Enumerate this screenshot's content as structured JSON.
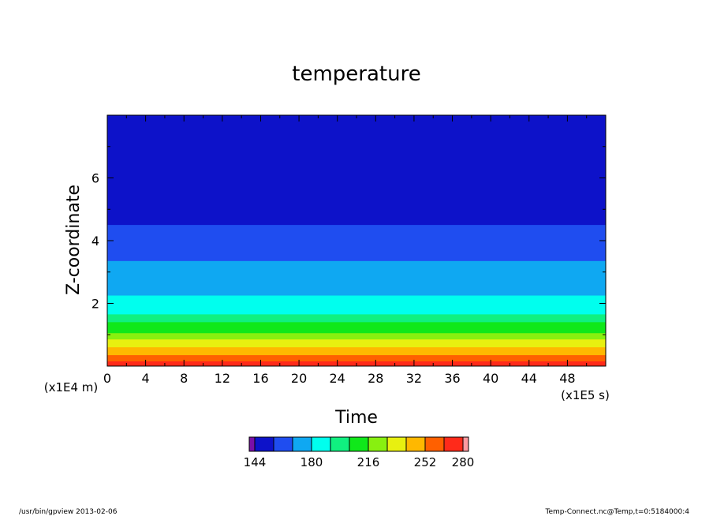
{
  "chart_data": {
    "type": "heatmap",
    "title": "temperature",
    "xlabel": "Time",
    "ylabel": "Z-coordinate",
    "x_unit_label": "(x1E5 s)",
    "y_unit_label": "(x1E4 m)",
    "xlim": [
      0,
      52
    ],
    "ylim": [
      0,
      8
    ],
    "x_ticks": [
      "0",
      "4",
      "8",
      "12",
      "16",
      "20",
      "24",
      "28",
      "32",
      "36",
      "40",
      "44",
      "48"
    ],
    "y_ticks": [
      "2",
      "4",
      "6"
    ],
    "levels": [
      {
        "z_top": 8.0,
        "color": "#0d12c9"
      },
      {
        "z_top": 4.5,
        "color": "#1f4df0"
      },
      {
        "z_top": 3.35,
        "color": "#0fa8f2"
      },
      {
        "z_top": 2.25,
        "color": "#00ffee"
      },
      {
        "z_top": 1.65,
        "color": "#10f080"
      },
      {
        "z_top": 1.4,
        "color": "#10e81a"
      },
      {
        "z_top": 1.05,
        "color": "#88f010"
      },
      {
        "z_top": 0.85,
        "color": "#e8f010"
      },
      {
        "z_top": 0.6,
        "color": "#ffb800"
      },
      {
        "z_top": 0.35,
        "color": "#ff6000"
      },
      {
        "z_top": 0.15,
        "color": "#ff2a1a"
      }
    ],
    "colorbar": {
      "colors": [
        "#7a0fa8",
        "#0d12c9",
        "#1f4df0",
        "#0fa8f2",
        "#00ffee",
        "#10f080",
        "#10e81a",
        "#88f010",
        "#e8f010",
        "#ffb800",
        "#ff6000",
        "#ff2a1a",
        "#ff9aa0"
      ],
      "labels": [
        "144",
        "180",
        "216",
        "252",
        "280"
      ]
    }
  },
  "footer": {
    "left": "/usr/bin/gpview  2013-02-06",
    "right": "Temp-Connect.nc@Temp,t=0:5184000:4"
  }
}
